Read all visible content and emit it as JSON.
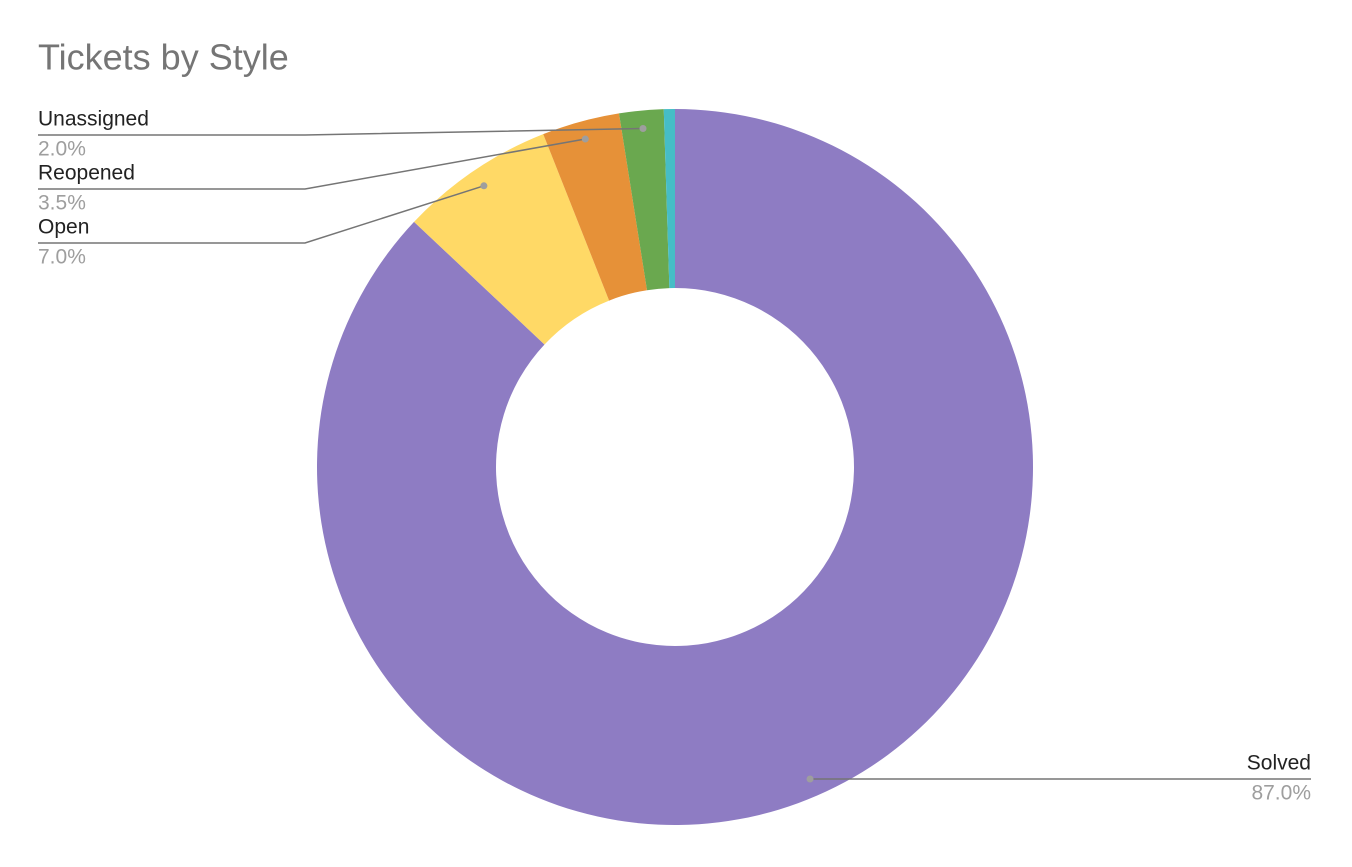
{
  "chart_data": {
    "type": "donut",
    "title": "Tickets by Style",
    "categories": [
      "Solved",
      "Open",
      "Reopened",
      "Unassigned",
      null
    ],
    "values": [
      87.0,
      7.0,
      3.5,
      2.0,
      0.5
    ],
    "value_labels": [
      "87.0%",
      "7.0%",
      "3.5%",
      "2.0%",
      null
    ],
    "colors": [
      "#8e7cc3",
      "#ffd966",
      "#e69138",
      "#6aa84f",
      "#46bdc6"
    ]
  }
}
